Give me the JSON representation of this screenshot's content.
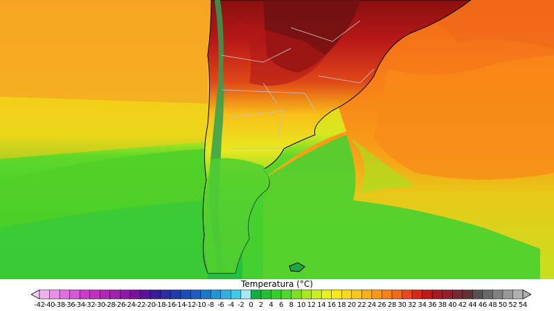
{
  "legend": {
    "title": "Temperatura (°C)",
    "ticks": [
      "-42",
      "-40",
      "-38",
      "-36",
      "-34",
      "-32",
      "-30",
      "-28",
      "-26",
      "-24",
      "-22",
      "-20",
      "-18",
      "-16",
      "-14",
      "-12",
      "-10",
      "-8",
      "-6",
      "-4",
      "-2",
      "0",
      "2",
      "4",
      "6",
      "8",
      "10",
      "12",
      "14",
      "16",
      "18",
      "20",
      "22",
      "24",
      "26",
      "28",
      "30",
      "32",
      "34",
      "36",
      "38",
      "40",
      "42",
      "44",
      "46",
      "48",
      "50",
      "52",
      "54"
    ],
    "colors": [
      "#f5d0f5",
      "#f0b0f0",
      "#e88ee8",
      "#e070e0",
      "#d655d6",
      "#cc3ccc",
      "#c030c0",
      "#b028b8",
      "#a020b0",
      "#9018a8",
      "#7a10a0",
      "#5a1098",
      "#3a1c98",
      "#2a2ca0",
      "#203caa",
      "#1a4cb4",
      "#1c5cbe",
      "#1a78c8",
      "#2094d4",
      "#30b0e0",
      "#40c8e8",
      "#a8e8f0",
      "#10b040",
      "#20c030",
      "#30d028",
      "#50d828",
      "#80e020",
      "#a8e820",
      "#c8f020",
      "#e8f020",
      "#f8e818",
      "#f8d818",
      "#f8c818",
      "#f8b018",
      "#f89818",
      "#f88018",
      "#f06818",
      "#e84818",
      "#d82818",
      "#c01818",
      "#a81820",
      "#902028",
      "#782830",
      "#603038",
      "#585050",
      "#686868",
      "#808080",
      "#989898",
      "#b0b0b0"
    ]
  }
}
